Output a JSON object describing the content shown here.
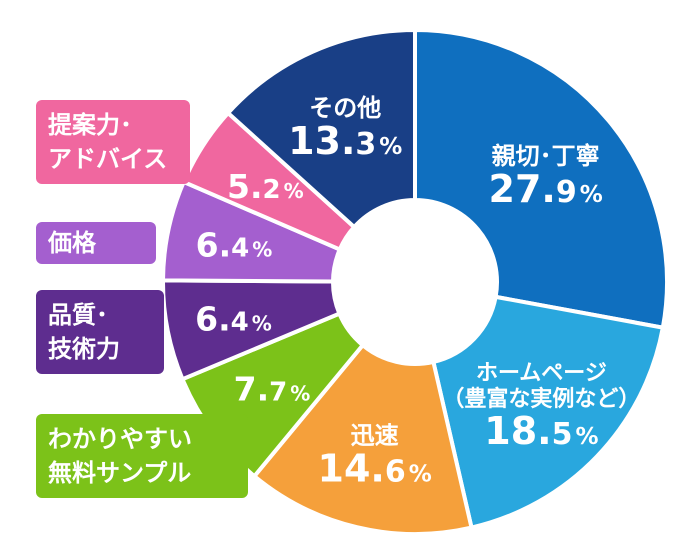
{
  "chart_data": {
    "type": "pie",
    "variant": "donut",
    "title": "",
    "unit": "%",
    "slices": [
      {
        "label": "親切･丁寧",
        "value": 27.9,
        "color": "#0f6fbf",
        "label_position": "inside"
      },
      {
        "label": "ホームページ\n（豊富な実例など）",
        "value": 18.5,
        "color": "#29a7de",
        "label_position": "inside"
      },
      {
        "label": "迅速",
        "value": 14.6,
        "color": "#f5a03b",
        "label_position": "inside"
      },
      {
        "label": "わかりやすい\n無料サンプル",
        "value": 7.7,
        "color": "#7cc219",
        "label_position": "callout"
      },
      {
        "label": "品質･\n技術力",
        "value": 6.4,
        "color": "#5e2d8f",
        "label_position": "callout"
      },
      {
        "label": "価格",
        "value": 6.4,
        "color": "#a45fcf",
        "label_position": "callout"
      },
      {
        "label": "提案力･\nアドバイス",
        "value": 5.2,
        "color": "#f0679f",
        "label_position": "callout"
      },
      {
        "label": "その他",
        "value": 13.3,
        "color": "#193f86",
        "label_position": "inside"
      }
    ]
  }
}
